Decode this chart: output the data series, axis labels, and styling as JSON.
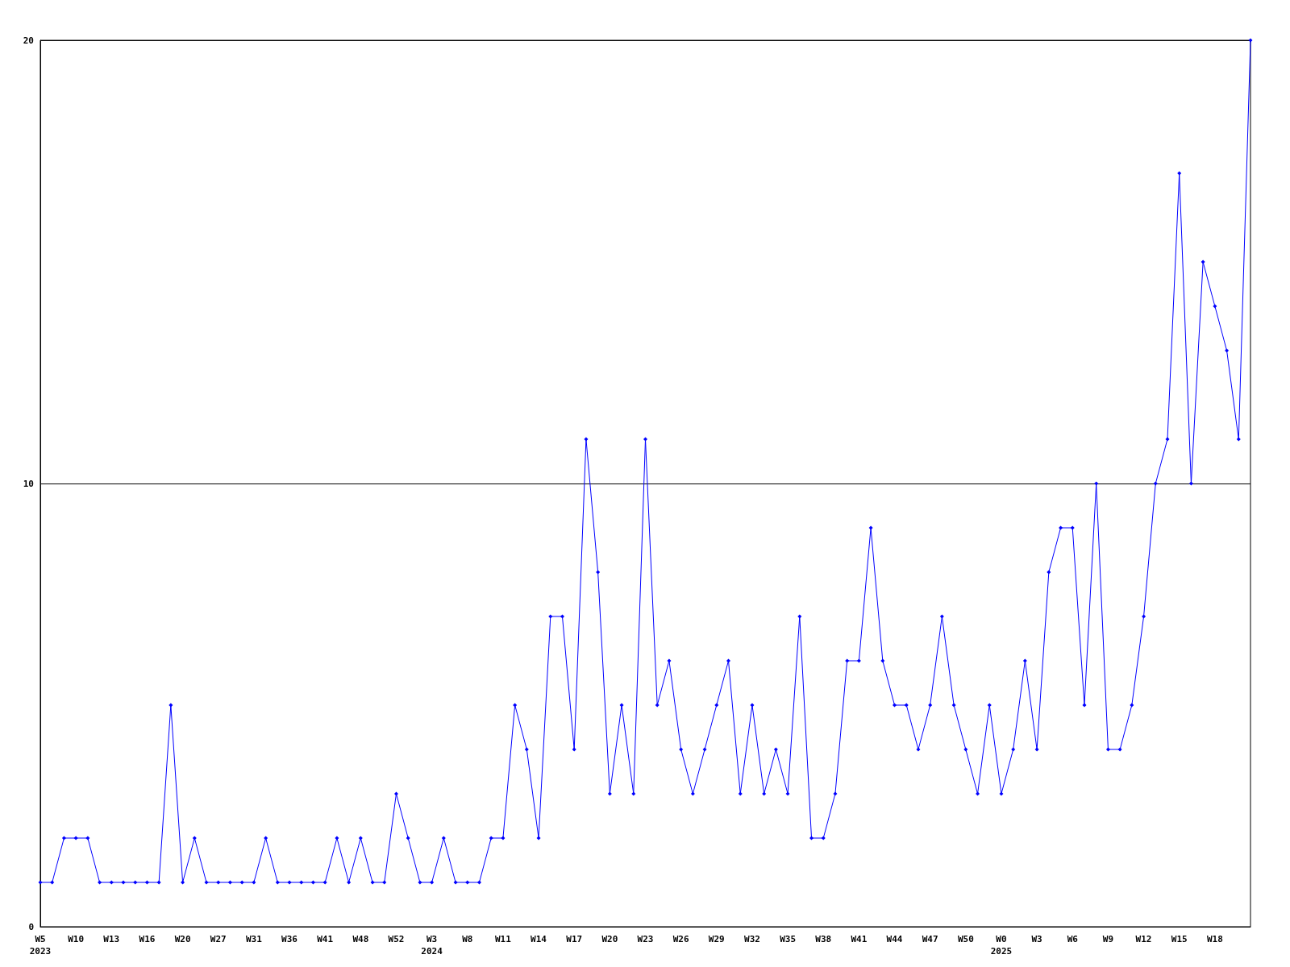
{
  "chart_data": {
    "type": "line",
    "categories": [
      "W5\n2023",
      null,
      null,
      "W10",
      null,
      null,
      "W13",
      null,
      null,
      "W16",
      null,
      null,
      "W20",
      null,
      null,
      "W27",
      null,
      null,
      "W31",
      null,
      null,
      "W36",
      null,
      null,
      "W41",
      null,
      null,
      "W48",
      null,
      null,
      "W52",
      null,
      null,
      "W3\n2024",
      null,
      null,
      "W8",
      null,
      null,
      "W11",
      null,
      null,
      "W14",
      null,
      null,
      "W17",
      null,
      null,
      "W20",
      null,
      null,
      "W23",
      null,
      null,
      "W26",
      null,
      null,
      "W29",
      null,
      null,
      "W32",
      null,
      null,
      "W35",
      null,
      null,
      "W38",
      null,
      null,
      "W41",
      null,
      null,
      "W44",
      null,
      null,
      "W47",
      null,
      null,
      "W50",
      null,
      null,
      "W0\n2025",
      null,
      null,
      "W3",
      null,
      null,
      "W6",
      null,
      null,
      "W9",
      null,
      null,
      "W12",
      null,
      null,
      "W15",
      null,
      null,
      "W18",
      null,
      null,
      null
    ],
    "series": [
      {
        "color": "#0000ff",
        "values": [
          1,
          1,
          2,
          2,
          2,
          1,
          1,
          1,
          1,
          1,
          1,
          5,
          1,
          2,
          1,
          1,
          1,
          1,
          1,
          2,
          1,
          1,
          1,
          1,
          1,
          2,
          1,
          2,
          1,
          1,
          3,
          2,
          1,
          1,
          2,
          1,
          1,
          1,
          2,
          2,
          5,
          4,
          2,
          7,
          7,
          4,
          11,
          8,
          3,
          5,
          3,
          11,
          5,
          6,
          4,
          3,
          4,
          5,
          6,
          3,
          5,
          3,
          4,
          3,
          7,
          2,
          2,
          3,
          6,
          6,
          9,
          6,
          5,
          5,
          4,
          5,
          7,
          5,
          4,
          3,
          5,
          3,
          4,
          6,
          4,
          8,
          9,
          9,
          5,
          10,
          4,
          4,
          5,
          7,
          10,
          11,
          17,
          10,
          15,
          14,
          13,
          11,
          20
        ]
      }
    ],
    "ylim": [
      0,
      20
    ],
    "yticks": [
      0,
      10,
      20
    ],
    "grid": "y",
    "marker": "diamond",
    "line_style": "solid"
  }
}
